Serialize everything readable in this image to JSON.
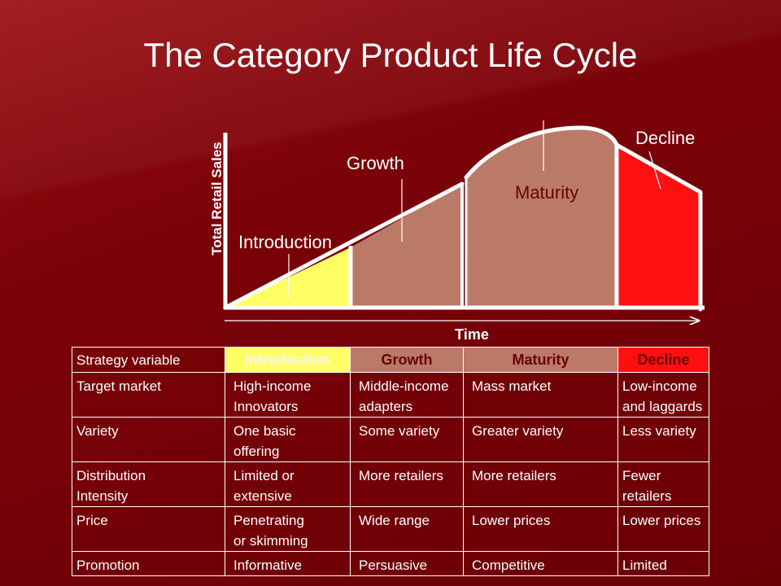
{
  "title": "The Category Product Life Cycle",
  "chart": {
    "y_axis_label": "Total Retail Sales",
    "x_axis_label": "Time",
    "stages": [
      {
        "label": "Introduction",
        "color": "#ffff66"
      },
      {
        "label": "Growth",
        "color": "#bb7a68"
      },
      {
        "label": "Maturity",
        "color": "#bb7a68"
      },
      {
        "label": "Decline",
        "color": "#ff1010"
      }
    ]
  },
  "table": {
    "header": [
      "Strategy variable",
      "Introduction",
      "Growth",
      "Maturity",
      "Decline"
    ],
    "rows": [
      {
        "variable": [
          "Target market"
        ],
        "intro": [
          "High-income",
          "Innovators"
        ],
        "growth": [
          "Middle-income",
          "adapters"
        ],
        "maturity": [
          "Mass market"
        ],
        "decline": [
          "Low-income",
          "and laggards"
        ]
      },
      {
        "variable": [
          "Variety"
        ],
        "intro": [
          "One basic",
          "offering"
        ],
        "growth": [
          "Some variety"
        ],
        "maturity": [
          "Greater variety"
        ],
        "decline": [
          "Less variety"
        ]
      },
      {
        "variable": [
          "Distribution",
          "Intensity"
        ],
        "intro": [
          "Limited or",
          "extensive"
        ],
        "growth": [
          "More retailers"
        ],
        "maturity": [
          "More retailers"
        ],
        "decline": [
          "Fewer",
          "retailers"
        ]
      },
      {
        "variable": [
          "Price"
        ],
        "intro": [
          "Penetrating",
          "or skimming"
        ],
        "growth": [
          "Wide range"
        ],
        "maturity": [
          "Lower prices"
        ],
        "decline": [
          "Lower prices"
        ]
      },
      {
        "variable": [
          "Promotion"
        ],
        "intro": [
          "Informative"
        ],
        "growth": [
          "Persuasive"
        ],
        "maturity": [
          "Competitive"
        ],
        "decline": [
          "Limited"
        ]
      }
    ]
  }
}
